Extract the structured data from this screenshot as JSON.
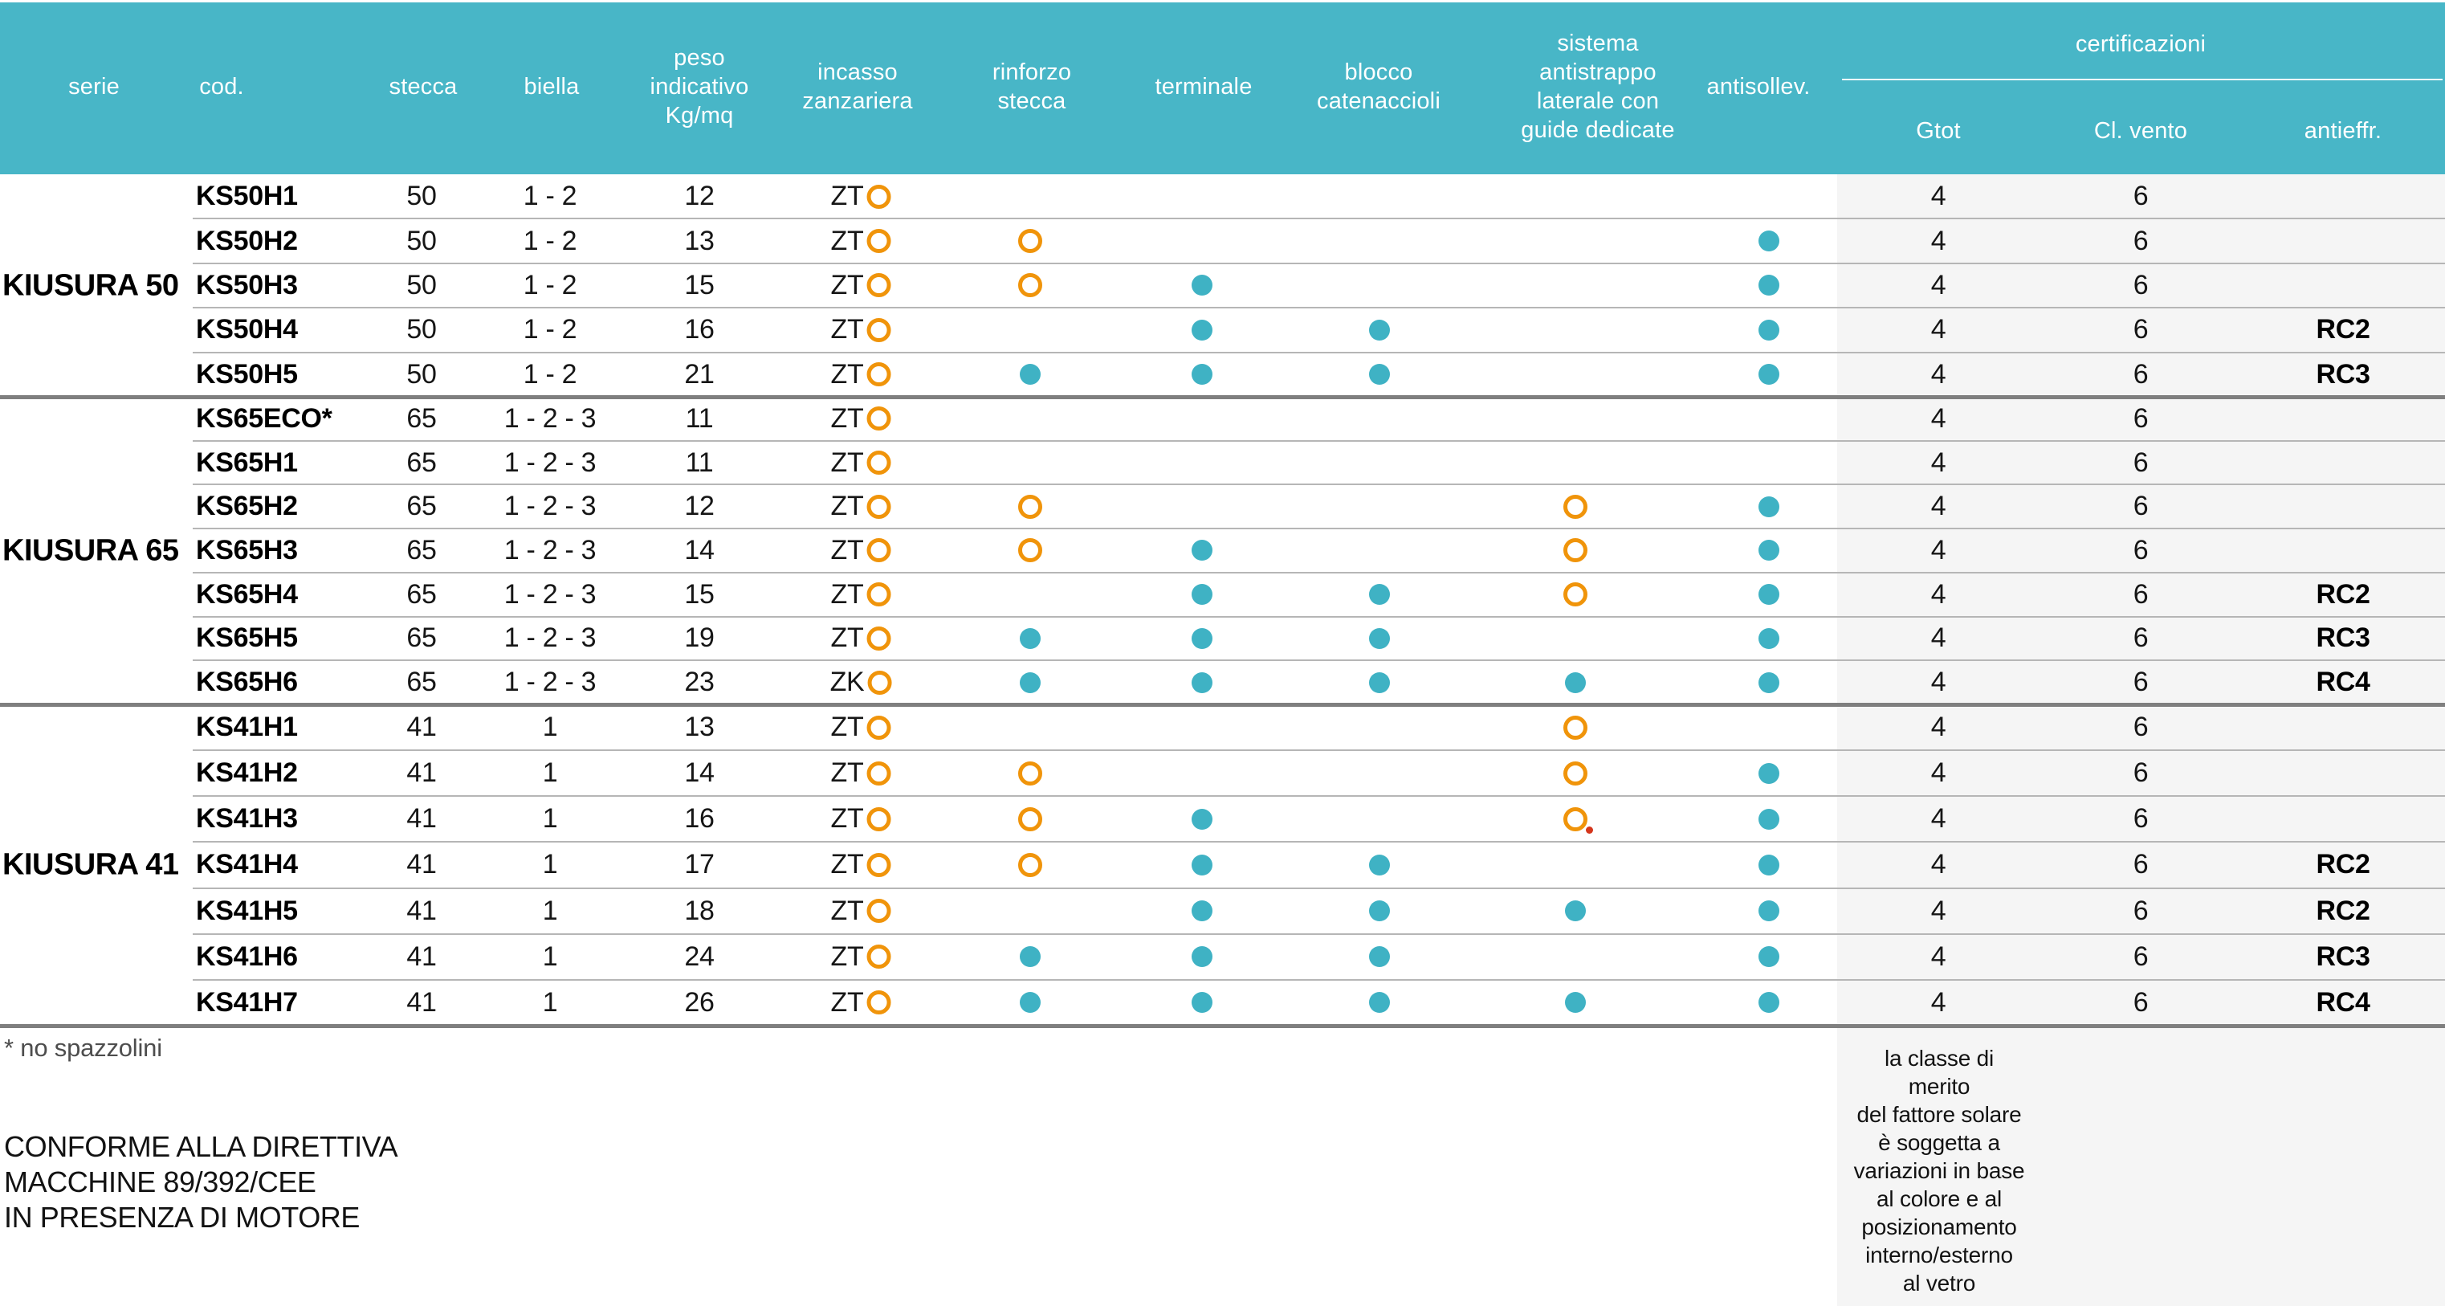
{
  "colors": {
    "header_teal": "#48b6c7",
    "dot_teal": "#3fb2c4",
    "ring_orange": "#f0940a",
    "red_dot": "#d5361c",
    "band_gray": "#f5f5f5",
    "thin_line": "#b6b6b6",
    "thick_line": "#7f7f7f"
  },
  "header": {
    "serie": "serie",
    "cod": "cod.",
    "stecca": "stecca",
    "biella": "biella",
    "peso": "peso\nindicativo\nKg/mq",
    "incasso": "incasso\nzanzariera",
    "rinforzo": "rinforzo\nstecca",
    "terminale": "terminale",
    "blocco": "blocco\ncatenaccioli",
    "sistema": "sistema\nantistrappo\nlaterale con\nguide dedicate",
    "antisollev": "antisollev.",
    "certificazioni": "certificazioni",
    "gtot": "Gtot",
    "vento": "Cl. vento",
    "antieffr": "antieffr."
  },
  "marker_legend": {
    "dot": "teal-filled-circle",
    "ring": "orange-hollow-circle",
    "ring-reddot": "orange-hollow-circle-with-small-red-dot"
  },
  "groups": [
    {
      "serie": "KIUSURA 50",
      "rows": [
        {
          "cod": "KS50H1",
          "stecca": "50",
          "biella": "1 - 2",
          "peso": "12",
          "incasso": "ZT",
          "rinforzo": "",
          "terminale": "",
          "blocco": "",
          "sistema": "",
          "antisollev": "",
          "gtot": "4",
          "vento": "6",
          "antieffr": ""
        },
        {
          "cod": "KS50H2",
          "stecca": "50",
          "biella": "1 - 2",
          "peso": "13",
          "incasso": "ZT",
          "rinforzo": "ring",
          "terminale": "",
          "blocco": "",
          "sistema": "",
          "antisollev": "dot",
          "gtot": "4",
          "vento": "6",
          "antieffr": ""
        },
        {
          "cod": "KS50H3",
          "stecca": "50",
          "biella": "1 - 2",
          "peso": "15",
          "incasso": "ZT",
          "rinforzo": "ring",
          "terminale": "dot",
          "blocco": "",
          "sistema": "",
          "antisollev": "dot",
          "gtot": "4",
          "vento": "6",
          "antieffr": ""
        },
        {
          "cod": "KS50H4",
          "stecca": "50",
          "biella": "1 - 2",
          "peso": "16",
          "incasso": "ZT",
          "rinforzo": "",
          "terminale": "dot",
          "blocco": "dot",
          "sistema": "",
          "antisollev": "dot",
          "gtot": "4",
          "vento": "6",
          "antieffr": "RC2"
        },
        {
          "cod": "KS50H5",
          "stecca": "50",
          "biella": "1 - 2",
          "peso": "21",
          "incasso": "ZT",
          "rinforzo": "dot",
          "terminale": "dot",
          "blocco": "dot",
          "sistema": "",
          "antisollev": "dot",
          "gtot": "4",
          "vento": "6",
          "antieffr": "RC3"
        }
      ]
    },
    {
      "serie": "KIUSURA 65",
      "rows": [
        {
          "cod": "KS65ECO*",
          "stecca": "65",
          "biella": "1 - 2 - 3",
          "peso": "11",
          "incasso": "ZT",
          "rinforzo": "",
          "terminale": "",
          "blocco": "",
          "sistema": "",
          "antisollev": "",
          "gtot": "4",
          "vento": "6",
          "antieffr": ""
        },
        {
          "cod": "KS65H1",
          "stecca": "65",
          "biella": "1 - 2 - 3",
          "peso": "11",
          "incasso": "ZT",
          "rinforzo": "",
          "terminale": "",
          "blocco": "",
          "sistema": "",
          "antisollev": "",
          "gtot": "4",
          "vento": "6",
          "antieffr": ""
        },
        {
          "cod": "KS65H2",
          "stecca": "65",
          "biella": "1 - 2 - 3",
          "peso": "12",
          "incasso": "ZT",
          "rinforzo": "ring",
          "terminale": "",
          "blocco": "",
          "sistema": "ring",
          "antisollev": "dot",
          "gtot": "4",
          "vento": "6",
          "antieffr": ""
        },
        {
          "cod": "KS65H3",
          "stecca": "65",
          "biella": "1 - 2 - 3",
          "peso": "14",
          "incasso": "ZT",
          "rinforzo": "ring",
          "terminale": "dot",
          "blocco": "",
          "sistema": "ring",
          "antisollev": "dot",
          "gtot": "4",
          "vento": "6",
          "antieffr": ""
        },
        {
          "cod": "KS65H4",
          "stecca": "65",
          "biella": "1 - 2 - 3",
          "peso": "15",
          "incasso": "ZT",
          "rinforzo": "",
          "terminale": "dot",
          "blocco": "dot",
          "sistema": "ring",
          "antisollev": "dot",
          "gtot": "4",
          "vento": "6",
          "antieffr": "RC2"
        },
        {
          "cod": "KS65H5",
          "stecca": "65",
          "biella": "1 - 2 - 3",
          "peso": "19",
          "incasso": "ZT",
          "rinforzo": "dot",
          "terminale": "dot",
          "blocco": "dot",
          "sistema": "",
          "antisollev": "dot",
          "gtot": "4",
          "vento": "6",
          "antieffr": "RC3"
        },
        {
          "cod": "KS65H6",
          "stecca": "65",
          "biella": "1 - 2 - 3",
          "peso": "23",
          "incasso": "ZK",
          "rinforzo": "dot",
          "terminale": "dot",
          "blocco": "dot",
          "sistema": "dot",
          "antisollev": "dot",
          "gtot": "4",
          "vento": "6",
          "antieffr": "RC4"
        }
      ]
    },
    {
      "serie": "KIUSURA 41",
      "rows": [
        {
          "cod": "KS41H1",
          "stecca": "41",
          "biella": "1",
          "peso": "13",
          "incasso": "ZT",
          "rinforzo": "",
          "terminale": "",
          "blocco": "",
          "sistema": "ring",
          "antisollev": "",
          "gtot": "4",
          "vento": "6",
          "antieffr": ""
        },
        {
          "cod": "KS41H2",
          "stecca": "41",
          "biella": "1",
          "peso": "14",
          "incasso": "ZT",
          "rinforzo": "ring",
          "terminale": "",
          "blocco": "",
          "sistema": "ring",
          "antisollev": "dot",
          "gtot": "4",
          "vento": "6",
          "antieffr": ""
        },
        {
          "cod": "KS41H3",
          "stecca": "41",
          "biella": "1",
          "peso": "16",
          "incasso": "ZT",
          "rinforzo": "ring",
          "terminale": "dot",
          "blocco": "",
          "sistema": "ring-reddot",
          "antisollev": "dot",
          "gtot": "4",
          "vento": "6",
          "antieffr": ""
        },
        {
          "cod": "KS41H4",
          "stecca": "41",
          "biella": "1",
          "peso": "17",
          "incasso": "ZT",
          "rinforzo": "ring",
          "terminale": "dot",
          "blocco": "dot",
          "sistema": "",
          "antisollev": "dot",
          "gtot": "4",
          "vento": "6",
          "antieffr": "RC2"
        },
        {
          "cod": "KS41H5",
          "stecca": "41",
          "biella": "1",
          "peso": "18",
          "incasso": "ZT",
          "rinforzo": "",
          "terminale": "dot",
          "blocco": "dot",
          "sistema": "dot",
          "antisollev": "dot",
          "gtot": "4",
          "vento": "6",
          "antieffr": "RC2"
        },
        {
          "cod": "KS41H6",
          "stecca": "41",
          "biella": "1",
          "peso": "24",
          "incasso": "ZT",
          "rinforzo": "dot",
          "terminale": "dot",
          "blocco": "dot",
          "sistema": "",
          "antisollev": "dot",
          "gtot": "4",
          "vento": "6",
          "antieffr": "RC3"
        },
        {
          "cod": "KS41H7",
          "stecca": "41",
          "biella": "1",
          "peso": "26",
          "incasso": "ZT",
          "rinforzo": "dot",
          "terminale": "dot",
          "blocco": "dot",
          "sistema": "dot",
          "antisollev": "dot",
          "gtot": "4",
          "vento": "6",
          "antieffr": "RC4"
        }
      ]
    }
  ],
  "footer": {
    "asterisk_note": "* no spazzolini",
    "directive_note": "CONFORME ALLA DIRETTIVA\nMACCHINE 89/392/CEE\nIN PRESENZA DI MOTORE",
    "solar_note": "la classe di\nmerito\ndel fattore solare\nè soggetta a\nvariazioni in base\nal colore e al\nposizionamento\ninterno/esterno\nal vetro"
  }
}
